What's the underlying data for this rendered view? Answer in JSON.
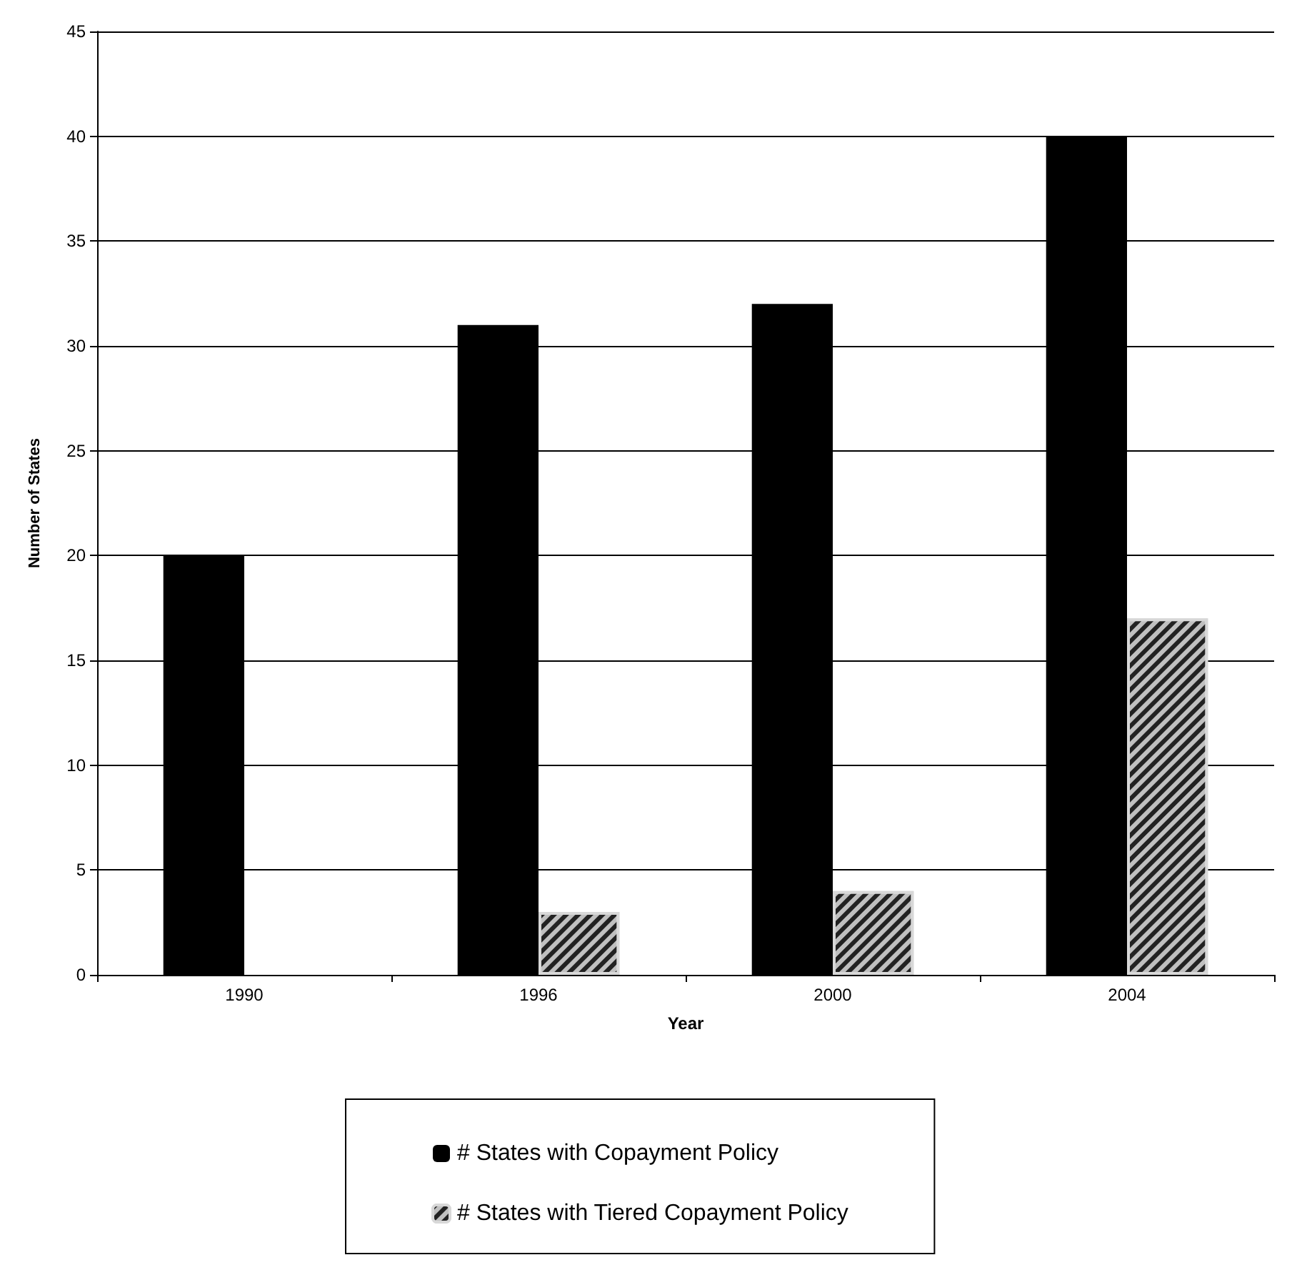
{
  "chart_data": {
    "type": "bar",
    "xlabel": "Year",
    "ylabel": "Number of States",
    "categories": [
      "1990",
      "1996",
      "2000",
      "2004"
    ],
    "series": [
      {
        "name": "# States with Copayment Policy",
        "color": "#000000",
        "values": [
          20,
          31,
          32,
          40
        ]
      },
      {
        "name": "# States with Tiered Copayment Policy",
        "color": "#c0c0c0",
        "values": [
          null,
          3,
          4,
          17
        ]
      }
    ],
    "ylim": [
      0,
      45
    ],
    "yticks": [
      0,
      5,
      10,
      15,
      20,
      25,
      30,
      35,
      40,
      45
    ],
    "grid": "y",
    "legend": "bottom"
  }
}
